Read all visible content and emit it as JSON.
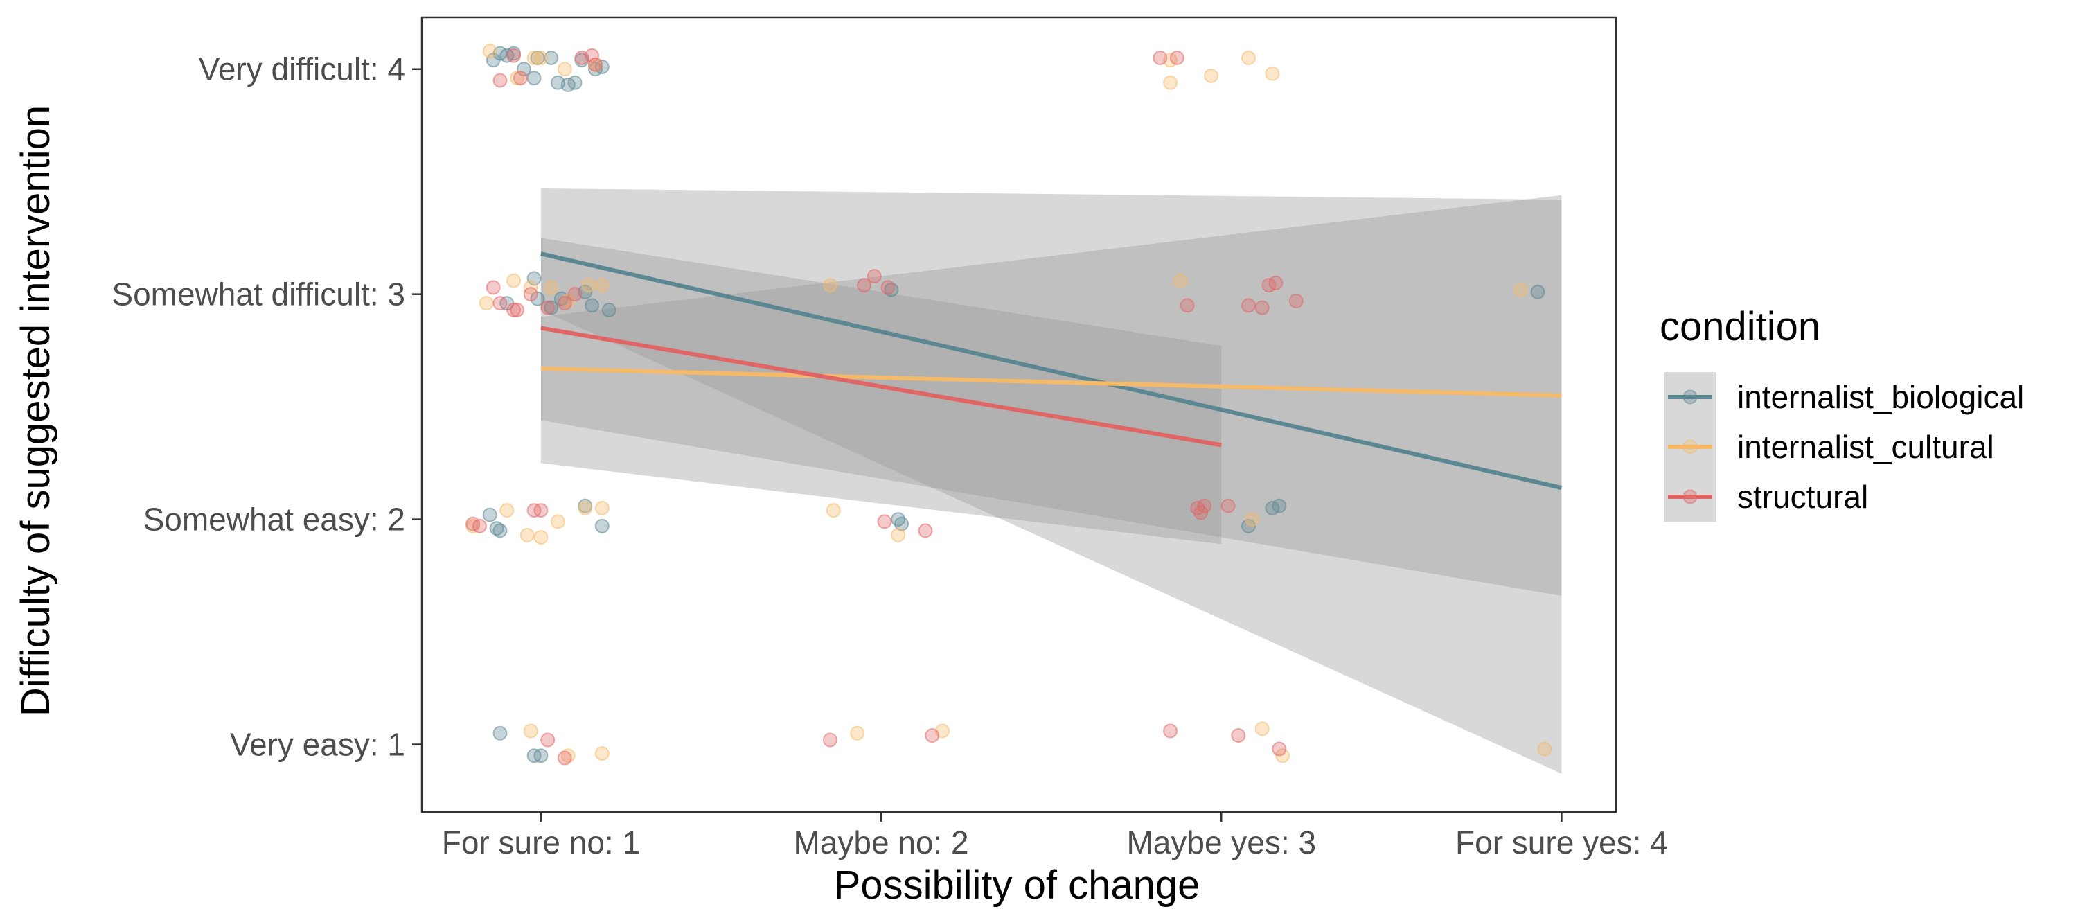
{
  "chart_data": {
    "type": "scatter",
    "xlabel": "Possibility of change",
    "ylabel": "Difficulty of suggested intervention",
    "x_ticks": [
      {
        "value": 1,
        "label": "For sure no: 1"
      },
      {
        "value": 2,
        "label": "Maybe no: 2"
      },
      {
        "value": 3,
        "label": "Maybe yes: 3"
      },
      {
        "value": 4,
        "label": "For sure yes: 4"
      }
    ],
    "y_ticks": [
      {
        "value": 1,
        "label": "Very easy: 1"
      },
      {
        "value": 2,
        "label": "Somewhat easy: 2"
      },
      {
        "value": 3,
        "label": "Somewhat difficult: 3"
      },
      {
        "value": 4,
        "label": "Very difficult: 4"
      }
    ],
    "xlim": [
      0.65,
      4.16
    ],
    "ylim": [
      0.7,
      4.23
    ],
    "grid": false,
    "legend": {
      "title": "condition",
      "position": "right"
    },
    "series": [
      {
        "name": "internalist_biological",
        "color": "#5b8792",
        "fit": {
          "x": [
            1,
            4
          ],
          "y": [
            3.18,
            2.14
          ]
        },
        "ci": {
          "x": [
            1,
            4
          ],
          "lower": [
            2.93,
            0.87
          ],
          "upper": [
            3.47,
            3.42
          ]
        },
        "points": [
          [
            0.86,
            4.04
          ],
          [
            0.88,
            4.07
          ],
          [
            0.9,
            4.06
          ],
          [
            0.92,
            4.07
          ],
          [
            0.95,
            4.0
          ],
          [
            0.98,
            3.96
          ],
          [
            0.99,
            4.05
          ],
          [
            1.03,
            4.05
          ],
          [
            1.05,
            3.94
          ],
          [
            1.08,
            3.93
          ],
          [
            1.1,
            3.94
          ],
          [
            1.12,
            4.04
          ],
          [
            1.16,
            4.0
          ],
          [
            1.18,
            4.01
          ],
          [
            0.9,
            2.96
          ],
          [
            0.98,
            3.07
          ],
          [
            0.99,
            2.98
          ],
          [
            1.03,
            2.94
          ],
          [
            1.06,
            2.98
          ],
          [
            1.13,
            3.01
          ],
          [
            1.15,
            2.95
          ],
          [
            1.2,
            2.93
          ],
          [
            0.85,
            2.02
          ],
          [
            0.87,
            1.96
          ],
          [
            0.88,
            1.95
          ],
          [
            1.13,
            2.06
          ],
          [
            1.18,
            1.97
          ],
          [
            0.88,
            1.05
          ],
          [
            0.98,
            0.95
          ],
          [
            1.0,
            0.95
          ],
          [
            2.03,
            3.02
          ],
          [
            2.05,
            2.0
          ],
          [
            2.06,
            1.98
          ],
          [
            3.08,
            1.97
          ],
          [
            3.15,
            2.05
          ],
          [
            3.17,
            2.06
          ],
          [
            3.93,
            3.01
          ]
        ]
      },
      {
        "name": "internalist_cultural",
        "color": "#f5b96a",
        "fit": {
          "x": [
            1,
            4
          ],
          "y": [
            2.67,
            2.55
          ]
        },
        "ci": {
          "x": [
            1,
            4
          ],
          "lower": [
            2.44,
            1.66
          ],
          "upper": [
            2.9,
            3.44
          ]
        },
        "points": [
          [
            0.85,
            4.08
          ],
          [
            0.93,
            3.96
          ],
          [
            0.98,
            4.05
          ],
          [
            1.0,
            4.05
          ],
          [
            1.07,
            4.0
          ],
          [
            1.16,
            4.02
          ],
          [
            0.84,
            2.96
          ],
          [
            0.92,
            3.06
          ],
          [
            0.97,
            3.03
          ],
          [
            1.03,
            3.03
          ],
          [
            1.08,
            2.97
          ],
          [
            1.14,
            3.04
          ],
          [
            1.18,
            3.04
          ],
          [
            0.8,
            1.97
          ],
          [
            0.9,
            2.04
          ],
          [
            0.96,
            1.93
          ],
          [
            1.0,
            1.92
          ],
          [
            1.05,
            1.99
          ],
          [
            1.13,
            2.05
          ],
          [
            1.18,
            2.05
          ],
          [
            0.97,
            1.06
          ],
          [
            1.08,
            0.95
          ],
          [
            1.18,
            0.96
          ],
          [
            1.85,
            3.04
          ],
          [
            2.05,
            1.93
          ],
          [
            1.86,
            2.04
          ],
          [
            1.93,
            1.05
          ],
          [
            2.18,
            1.06
          ],
          [
            2.85,
            4.04
          ],
          [
            2.85,
            3.94
          ],
          [
            2.97,
            3.97
          ],
          [
            3.08,
            4.05
          ],
          [
            3.15,
            3.98
          ],
          [
            2.88,
            3.06
          ],
          [
            3.09,
            2.0
          ],
          [
            3.12,
            1.07
          ],
          [
            3.18,
            0.95
          ],
          [
            3.88,
            3.02
          ],
          [
            3.95,
            0.98
          ]
        ]
      },
      {
        "name": "structural",
        "color": "#e06666",
        "fit": {
          "x": [
            1,
            3
          ],
          "y": [
            2.85,
            2.33
          ]
        },
        "ci": {
          "x": [
            1,
            3
          ],
          "lower": [
            2.25,
            1.89
          ],
          "upper": [
            3.25,
            2.77
          ]
        },
        "points": [
          [
            0.88,
            3.95
          ],
          [
            0.92,
            4.06
          ],
          [
            0.94,
            3.96
          ],
          [
            1.12,
            4.05
          ],
          [
            1.15,
            4.06
          ],
          [
            1.16,
            4.02
          ],
          [
            0.86,
            3.03
          ],
          [
            0.88,
            2.96
          ],
          [
            0.92,
            2.93
          ],
          [
            0.93,
            2.93
          ],
          [
            0.97,
            3.0
          ],
          [
            1.02,
            2.94
          ],
          [
            1.07,
            2.96
          ],
          [
            1.1,
            3.0
          ],
          [
            0.8,
            1.98
          ],
          [
            0.82,
            1.97
          ],
          [
            0.98,
            2.04
          ],
          [
            1.0,
            2.04
          ],
          [
            1.02,
            1.02
          ],
          [
            1.07,
            0.94
          ],
          [
            1.95,
            3.04
          ],
          [
            1.98,
            3.08
          ],
          [
            2.02,
            3.03
          ],
          [
            1.85,
            1.02
          ],
          [
            2.01,
            1.99
          ],
          [
            2.13,
            1.95
          ],
          [
            2.15,
            1.04
          ],
          [
            2.82,
            4.05
          ],
          [
            2.87,
            4.05
          ],
          [
            2.9,
            2.95
          ],
          [
            2.93,
            2.05
          ],
          [
            2.94,
            2.03
          ],
          [
            2.95,
            2.06
          ],
          [
            3.02,
            2.06
          ],
          [
            3.08,
            2.95
          ],
          [
            3.12,
            2.94
          ],
          [
            3.14,
            3.04
          ],
          [
            3.16,
            3.05
          ],
          [
            3.22,
            2.97
          ],
          [
            2.85,
            1.06
          ],
          [
            3.05,
            1.04
          ],
          [
            3.17,
            0.98
          ]
        ]
      }
    ]
  }
}
